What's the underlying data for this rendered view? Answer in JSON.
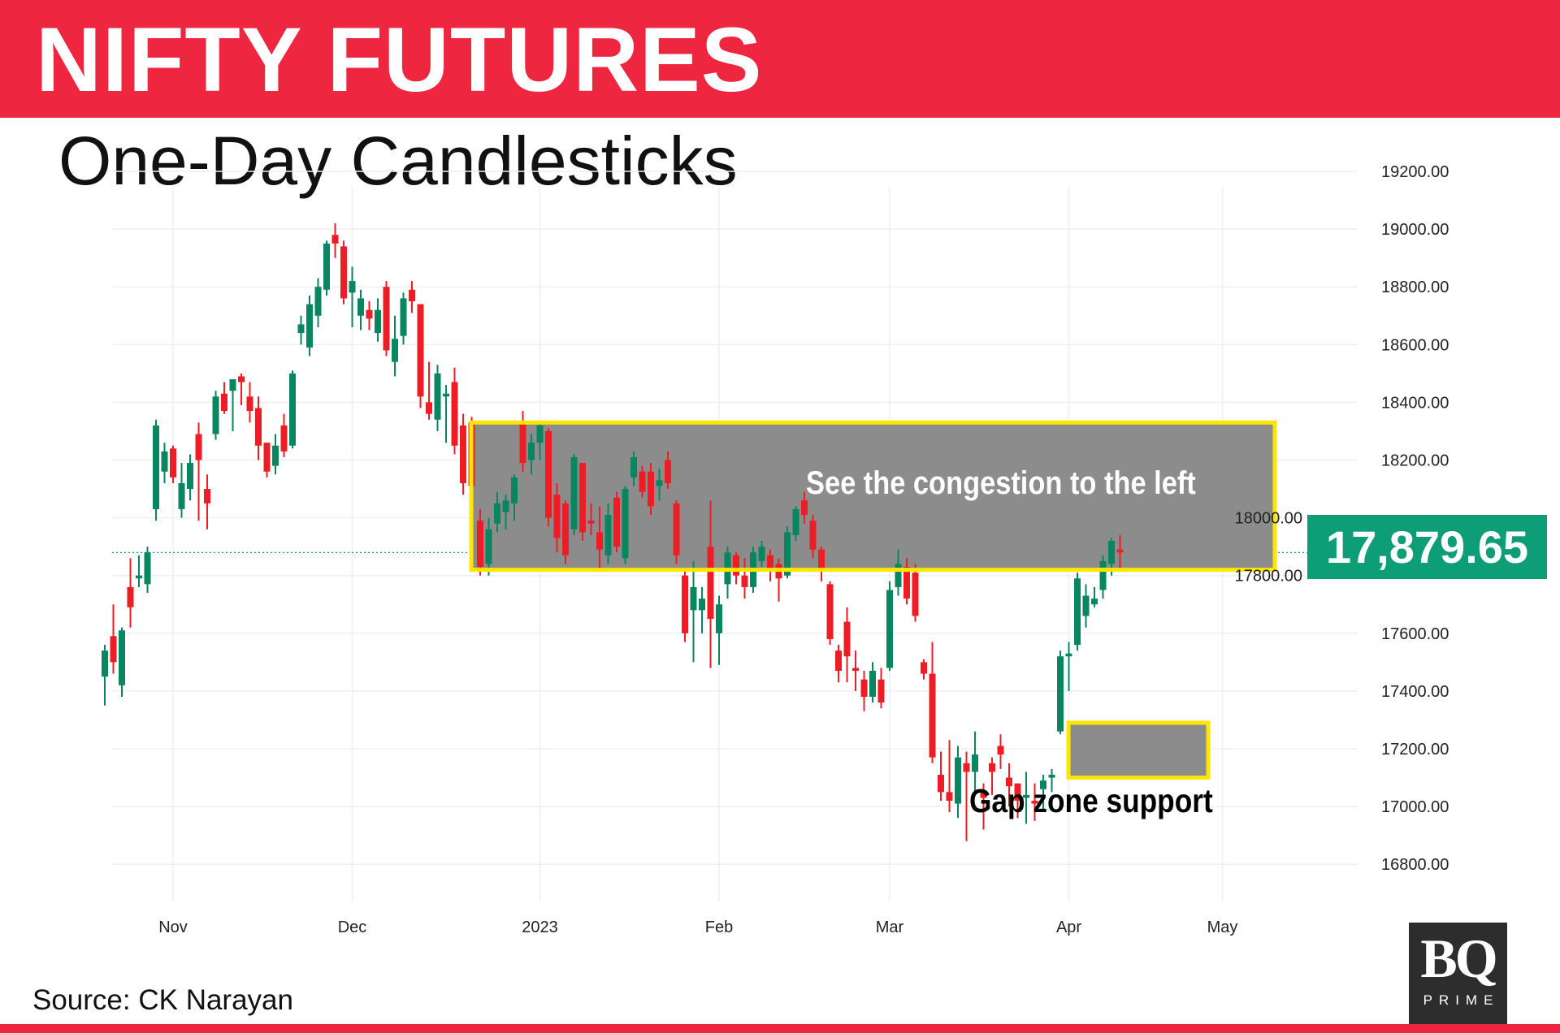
{
  "header": {
    "title": "NIFTY FUTURES",
    "subtitle": "One-Day Candlesticks"
  },
  "annotations": {
    "congestion_note": "See the congestion to the left",
    "gap_note": "Gap zone support",
    "last_price": "17,879.65"
  },
  "source": "Source: CK Narayan",
  "logo": {
    "text": "BQ",
    "subtext": "PRIME"
  },
  "colors": {
    "up": "#08865f",
    "down": "#ee1c25",
    "header": "#ee2640",
    "tag": "#0d9e78",
    "zone_border": "#ffe600",
    "zone_fill": "#8c8c8c"
  },
  "chart_data": {
    "type": "candlestick",
    "title": "One-Day Candlesticks",
    "ylim": [
      16700,
      19250
    ],
    "y_ticks": [
      16800,
      17000,
      17200,
      17400,
      17600,
      17800,
      18000,
      18200,
      18400,
      18600,
      18800,
      19000,
      19200
    ],
    "y_tick_labels": [
      "16800.00",
      "17000.00",
      "17200.00",
      "17400.00",
      "17600.00",
      "17800.00",
      "18000.00",
      "18200.00",
      "18400.00",
      "18600.00",
      "18800.00",
      "19000.00",
      "19200.00"
    ],
    "x_ticks": [
      "2022-11-01",
      "2022-12-01",
      "2023-01-02",
      "2023-02-01",
      "2023-03-01",
      "2023-04-03",
      "2023-05-01"
    ],
    "x_tick_labels": [
      "Nov",
      "Dec",
      "2023",
      "Feb",
      "Mar",
      "Apr",
      "May"
    ],
    "grid": true,
    "last_price_line": 17879.65,
    "zones": [
      {
        "label": "See the congestion to the left",
        "from": "2022-12-21",
        "to": "2023-05-10",
        "low": 17820,
        "high": 18330
      },
      {
        "label": "Gap zone support",
        "from": "2023-04-03",
        "to": "2023-04-28",
        "low": 17100,
        "high": 17290
      }
    ],
    "columns": [
      "date",
      "open",
      "high",
      "low",
      "close"
    ],
    "candles": [
      [
        "2022-10-18",
        17450,
        17560,
        17350,
        17540
      ],
      [
        "2022-10-19",
        17590,
        17700,
        17460,
        17500
      ],
      [
        "2022-10-20",
        17420,
        17620,
        17380,
        17610
      ],
      [
        "2022-10-21",
        17760,
        17860,
        17620,
        17690
      ],
      [
        "2022-10-25",
        17790,
        17870,
        17760,
        17800
      ],
      [
        "2022-10-27",
        17770,
        17900,
        17740,
        17880
      ],
      [
        "2022-10-28",
        18030,
        18340,
        17990,
        18320
      ],
      [
        "2022-10-31",
        18160,
        18260,
        18120,
        18230
      ],
      [
        "2022-11-01",
        18240,
        18250,
        18120,
        18140
      ],
      [
        "2022-11-02",
        18030,
        18190,
        18000,
        18120
      ],
      [
        "2022-11-03",
        18100,
        18220,
        18060,
        18190
      ],
      [
        "2022-11-04",
        18290,
        18330,
        17990,
        18200
      ],
      [
        "2022-11-07",
        18100,
        18150,
        17960,
        18050
      ],
      [
        "2022-11-09",
        18290,
        18440,
        18270,
        18420
      ],
      [
        "2022-11-10",
        18430,
        18470,
        18360,
        18370
      ],
      [
        "2022-11-11",
        18440,
        18480,
        18300,
        18480
      ],
      [
        "2022-11-14",
        18490,
        18500,
        18390,
        18470
      ],
      [
        "2022-11-15",
        18420,
        18470,
        18330,
        18370
      ],
      [
        "2022-11-16",
        18380,
        18420,
        18200,
        18250
      ],
      [
        "2022-11-17",
        18260,
        18260,
        18140,
        18160
      ],
      [
        "2022-11-18",
        18180,
        18290,
        18150,
        18250
      ],
      [
        "2022-11-21",
        18320,
        18360,
        18210,
        18230
      ],
      [
        "2022-11-22",
        18250,
        18510,
        18240,
        18500
      ],
      [
        "2022-11-23",
        18640,
        18700,
        18600,
        18670
      ],
      [
        "2022-11-24",
        18590,
        18770,
        18560,
        18740
      ],
      [
        "2022-11-25",
        18700,
        18830,
        18660,
        18800
      ],
      [
        "2022-11-28",
        18790,
        18960,
        18770,
        18950
      ],
      [
        "2022-11-29",
        18980,
        19020,
        18900,
        18950
      ],
      [
        "2022-11-30",
        18940,
        18960,
        18740,
        18760
      ],
      [
        "2022-12-01",
        18780,
        18870,
        18660,
        18820
      ],
      [
        "2022-12-02",
        18700,
        18790,
        18650,
        18760
      ],
      [
        "2022-12-05",
        18720,
        18750,
        18650,
        18690
      ],
      [
        "2022-12-06",
        18640,
        18760,
        18610,
        18720
      ],
      [
        "2022-12-07",
        18800,
        18820,
        18560,
        18580
      ],
      [
        "2022-12-08",
        18540,
        18700,
        18490,
        18620
      ],
      [
        "2022-12-09",
        18630,
        18780,
        18600,
        18760
      ],
      [
        "2022-12-12",
        18790,
        18820,
        18710,
        18750
      ],
      [
        "2022-12-13",
        18740,
        18740,
        18380,
        18420
      ],
      [
        "2022-12-14",
        18400,
        18540,
        18340,
        18360
      ],
      [
        "2022-12-15",
        18340,
        18530,
        18300,
        18500
      ],
      [
        "2022-12-16",
        18420,
        18460,
        18260,
        18430
      ],
      [
        "2022-12-19",
        18470,
        18520,
        18220,
        18250
      ],
      [
        "2022-12-20",
        18320,
        18360,
        18080,
        18120
      ],
      [
        "2022-12-21",
        18330,
        18350,
        18090,
        18110
      ],
      [
        "2022-12-22",
        17990,
        18030,
        17800,
        17830
      ],
      [
        "2022-12-23",
        17840,
        18000,
        17800,
        17960
      ],
      [
        "2022-12-26",
        17980,
        18090,
        17950,
        18050
      ],
      [
        "2022-12-27",
        18020,
        18080,
        17960,
        18060
      ],
      [
        "2022-12-28",
        18050,
        18150,
        17990,
        18140
      ],
      [
        "2022-12-29",
        18330,
        18370,
        18160,
        18190
      ],
      [
        "2022-12-30",
        18200,
        18290,
        18150,
        18260
      ],
      [
        "2023-01-02",
        18260,
        18330,
        18200,
        18320
      ],
      [
        "2023-01-03",
        18300,
        18310,
        17970,
        18000
      ],
      [
        "2023-01-04",
        18080,
        18120,
        17880,
        17930
      ],
      [
        "2023-01-05",
        18050,
        18060,
        17840,
        17870
      ],
      [
        "2023-01-06",
        17960,
        18220,
        17940,
        18210
      ],
      [
        "2023-01-09",
        18190,
        18190,
        17920,
        17950
      ],
      [
        "2023-01-10",
        17990,
        18050,
        17940,
        17980
      ],
      [
        "2023-01-11",
        17950,
        18040,
        17820,
        17890
      ],
      [
        "2023-01-12",
        17870,
        18050,
        17840,
        18010
      ],
      [
        "2023-01-13",
        18070,
        18090,
        17880,
        17900
      ],
      [
        "2023-01-16",
        17860,
        18110,
        17840,
        18100
      ],
      [
        "2023-01-17",
        18140,
        18230,
        18110,
        18210
      ],
      [
        "2023-01-18",
        18160,
        18180,
        18070,
        18090
      ],
      [
        "2023-01-19",
        18160,
        18190,
        18010,
        18040
      ],
      [
        "2023-01-20",
        18110,
        18170,
        18060,
        18130
      ],
      [
        "2023-01-23",
        18200,
        18230,
        18100,
        18120
      ],
      [
        "2023-01-24",
        18050,
        18060,
        17840,
        17870
      ],
      [
        "2023-01-25",
        17800,
        17820,
        17570,
        17600
      ],
      [
        "2023-01-27",
        17680,
        17850,
        17500,
        17760
      ],
      [
        "2023-01-30",
        17680,
        17760,
        17600,
        17720
      ],
      [
        "2023-01-31",
        17900,
        18060,
        17480,
        17650
      ],
      [
        "2023-02-01",
        17600,
        17730,
        17490,
        17700
      ],
      [
        "2023-02-02",
        17770,
        17900,
        17720,
        17880
      ],
      [
        "2023-02-03",
        17870,
        17880,
        17770,
        17800
      ],
      [
        "2023-02-06",
        17800,
        17860,
        17720,
        17760
      ],
      [
        "2023-02-07",
        17760,
        17900,
        17740,
        17880
      ],
      [
        "2023-02-08",
        17850,
        17920,
        17830,
        17900
      ],
      [
        "2023-02-09",
        17870,
        17890,
        17780,
        17820
      ],
      [
        "2023-02-10",
        17840,
        17860,
        17710,
        17790
      ],
      [
        "2023-02-13",
        17800,
        17970,
        17790,
        17950
      ],
      [
        "2023-02-14",
        17940,
        18040,
        17920,
        18030
      ],
      [
        "2023-02-15",
        18060,
        18090,
        17980,
        18010
      ],
      [
        "2023-02-16",
        17990,
        18010,
        17860,
        17890
      ],
      [
        "2023-02-17",
        17890,
        17900,
        17780,
        17820
      ],
      [
        "2023-02-20",
        17770,
        17780,
        17560,
        17580
      ],
      [
        "2023-02-21",
        17540,
        17560,
        17430,
        17470
      ],
      [
        "2023-02-22",
        17640,
        17690,
        17430,
        17520
      ],
      [
        "2023-02-23",
        17480,
        17540,
        17400,
        17470
      ],
      [
        "2023-02-24",
        17440,
        17470,
        17330,
        17380
      ],
      [
        "2023-02-27",
        17380,
        17500,
        17360,
        17470
      ],
      [
        "2023-02-28",
        17440,
        17480,
        17340,
        17360
      ],
      [
        "2023-03-01",
        17480,
        17780,
        17470,
        17750
      ],
      [
        "2023-03-02",
        17760,
        17890,
        17730,
        17840
      ],
      [
        "2023-03-03",
        17830,
        17860,
        17700,
        17720
      ],
      [
        "2023-03-06",
        17810,
        17840,
        17640,
        17660
      ],
      [
        "2023-03-08",
        17500,
        17510,
        17440,
        17460
      ],
      [
        "2023-03-09",
        17460,
        17570,
        17150,
        17170
      ],
      [
        "2023-03-10",
        17110,
        17190,
        17020,
        17050
      ],
      [
        "2023-03-13",
        17050,
        17230,
        16980,
        17020
      ],
      [
        "2023-03-14",
        17010,
        17210,
        16960,
        17170
      ],
      [
        "2023-03-15",
        17150,
        17190,
        16880,
        17120
      ],
      [
        "2023-03-16",
        17120,
        17260,
        17040,
        17180
      ],
      [
        "2023-03-17",
        17050,
        17080,
        16920,
        17030
      ],
      [
        "2023-03-20",
        17150,
        17170,
        17040,
        17120
      ],
      [
        "2023-03-21",
        17210,
        17250,
        17130,
        17180
      ],
      [
        "2023-03-22",
        17100,
        17150,
        17000,
        17070
      ],
      [
        "2023-03-23",
        17080,
        17080,
        16960,
        17020
      ],
      [
        "2023-03-24",
        17030,
        17120,
        16940,
        17040
      ],
      [
        "2023-03-27",
        17020,
        17080,
        16950,
        17010
      ],
      [
        "2023-03-28",
        17060,
        17110,
        16990,
        17090
      ],
      [
        "2023-03-29",
        17100,
        17130,
        17050,
        17110
      ],
      [
        "2023-03-31",
        17260,
        17540,
        17250,
        17520
      ],
      [
        "2023-04-03",
        17520,
        17570,
        17400,
        17530
      ],
      [
        "2023-04-05",
        17560,
        17810,
        17540,
        17790
      ],
      [
        "2023-04-06",
        17660,
        17770,
        17620,
        17730
      ],
      [
        "2023-04-10",
        17700,
        17760,
        17690,
        17720
      ],
      [
        "2023-04-11",
        17750,
        17870,
        17720,
        17850
      ],
      [
        "2023-04-12",
        17840,
        17930,
        17800,
        17920
      ],
      [
        "2023-04-13",
        17890,
        17940,
        17820,
        17880
      ]
    ]
  }
}
